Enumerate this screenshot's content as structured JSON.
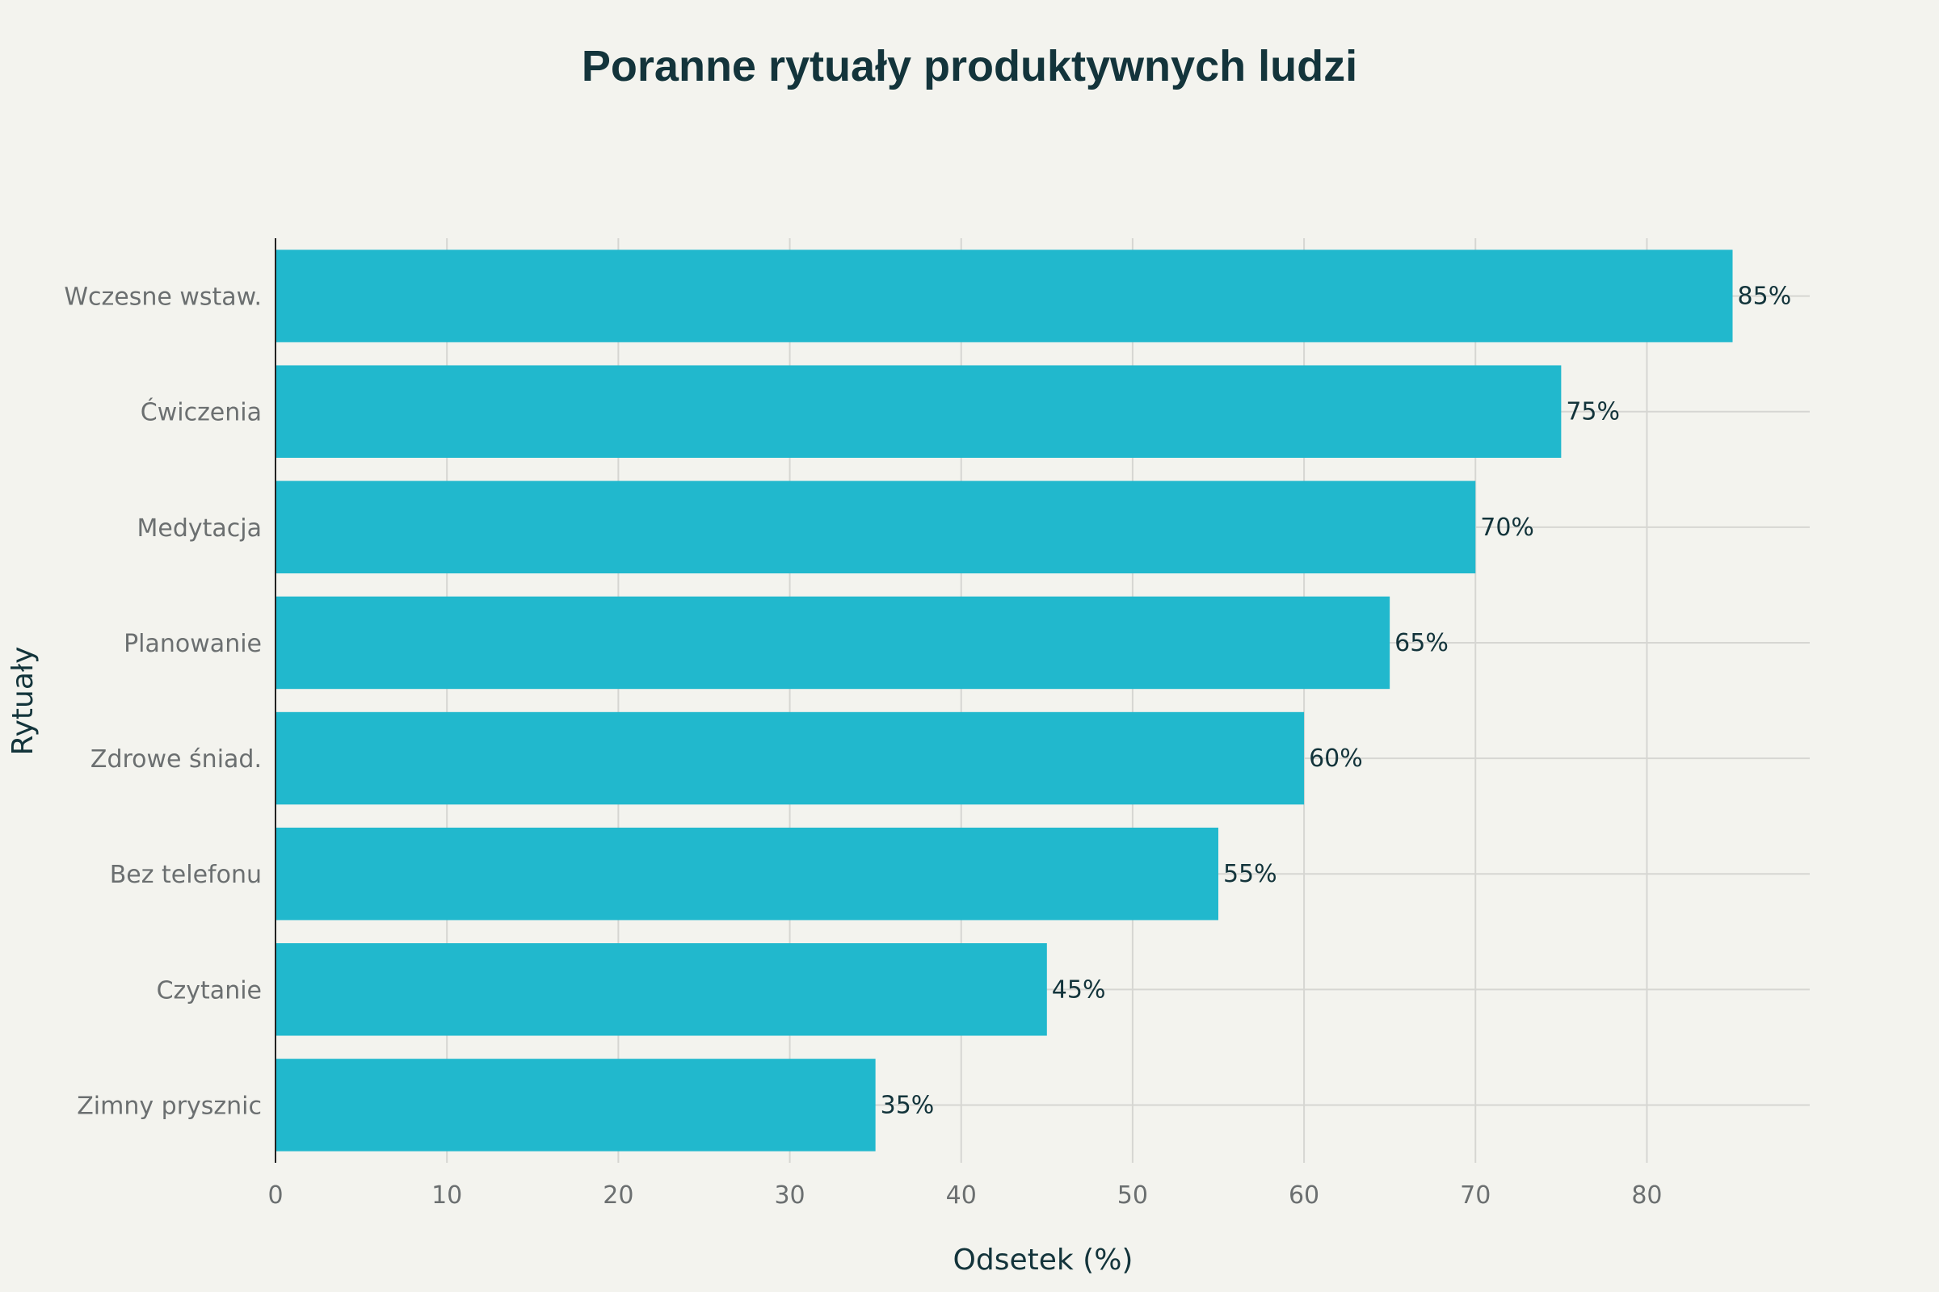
{
  "chart_data": {
    "type": "bar",
    "orientation": "horizontal",
    "title": "Poranne rytuały produktywnych ludzi",
    "xlabel": "Odsetek (%)",
    "ylabel": "Rytuały",
    "xlim": [
      0,
      89.5
    ],
    "xticks": [
      0,
      10,
      20,
      30,
      40,
      50,
      60,
      70,
      80
    ],
    "categories": [
      "Wczesne wstaw.",
      "Ćwiczenia",
      "Medytacja",
      "Planowanie",
      "Zdrowe śniad.",
      "Bez telefonu",
      "Czytanie",
      "Zimny prysznic"
    ],
    "values": [
      85,
      75,
      70,
      65,
      60,
      55,
      45,
      35
    ],
    "value_labels": [
      "85%",
      "75%",
      "70%",
      "65%",
      "60%",
      "55%",
      "45%",
      "35%"
    ],
    "grid": true,
    "bar_color": "#21b8cd",
    "grid_color": "#d6d6d2",
    "axis_color": "#222222",
    "background_color": "#f3f3ee"
  }
}
